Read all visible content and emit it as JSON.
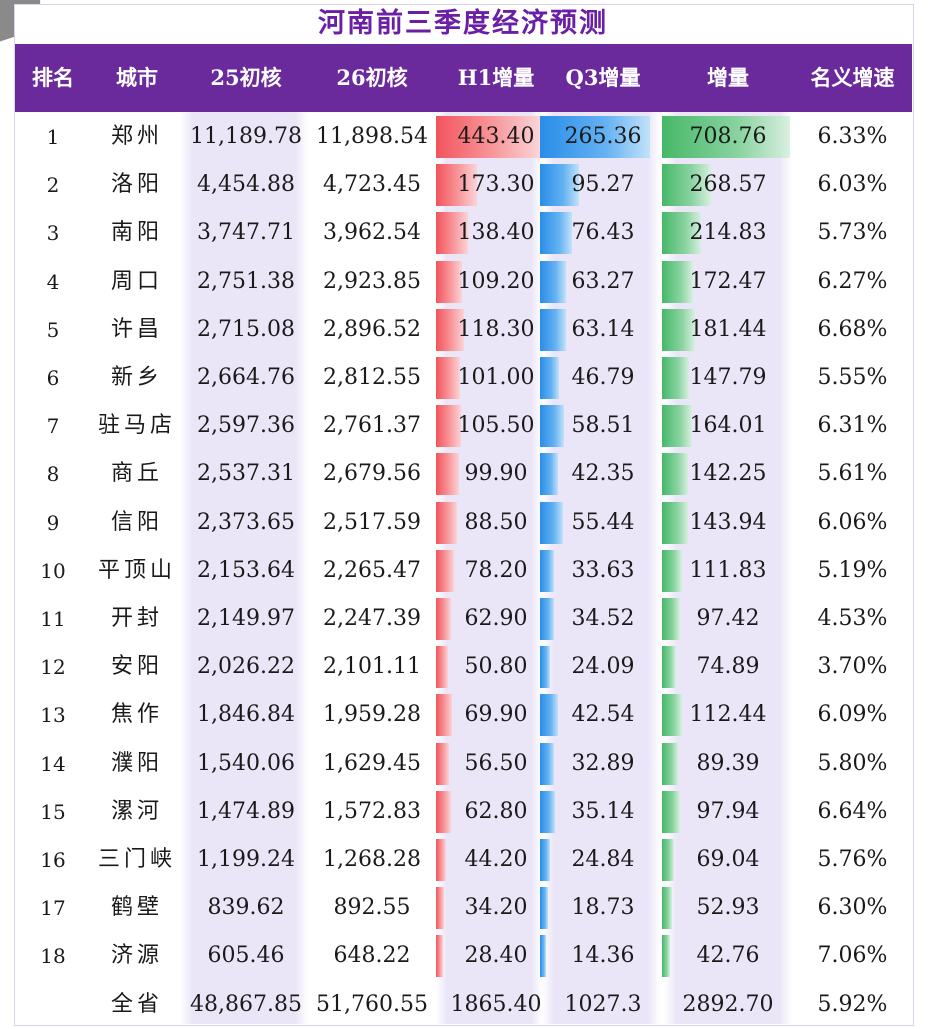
{
  "title": "河南前三季度经济预测",
  "headers": [
    "排名",
    "城市",
    "25初核",
    "26初核",
    "H1增量",
    "Q3增量",
    "增量",
    "名义增速"
  ],
  "rows": [
    [
      "1",
      "郑州",
      "11,189.78",
      "11,898.54",
      "443.40",
      "265.36",
      "708.76",
      "6.33%"
    ],
    [
      "2",
      "洛阳",
      "4,454.88",
      "4,723.45",
      "173.30",
      "95.27",
      "268.57",
      "6.03%"
    ],
    [
      "3",
      "南阳",
      "3,747.71",
      "3,962.54",
      "138.40",
      "76.43",
      "214.83",
      "5.73%"
    ],
    [
      "4",
      "周口",
      "2,751.38",
      "2,923.85",
      "109.20",
      "63.27",
      "172.47",
      "6.27%"
    ],
    [
      "5",
      "许昌",
      "2,715.08",
      "2,896.52",
      "118.30",
      "63.14",
      "181.44",
      "6.68%"
    ],
    [
      "6",
      "新乡",
      "2,664.76",
      "2,812.55",
      "101.00",
      "46.79",
      "147.79",
      "5.55%"
    ],
    [
      "7",
      "驻马店",
      "2,597.36",
      "2,761.37",
      "105.50",
      "58.51",
      "164.01",
      "6.31%"
    ],
    [
      "8",
      "商丘",
      "2,537.31",
      "2,679.56",
      "99.90",
      "42.35",
      "142.25",
      "5.61%"
    ],
    [
      "9",
      "信阳",
      "2,373.65",
      "2,517.59",
      "88.50",
      "55.44",
      "143.94",
      "6.06%"
    ],
    [
      "10",
      "平顶山",
      "2,153.64",
      "2,265.47",
      "78.20",
      "33.63",
      "111.83",
      "5.19%"
    ],
    [
      "11",
      "开封",
      "2,149.97",
      "2,247.39",
      "62.90",
      "34.52",
      "97.42",
      "4.53%"
    ],
    [
      "12",
      "安阳",
      "2,026.22",
      "2,101.11",
      "50.80",
      "24.09",
      "74.89",
      "3.70%"
    ],
    [
      "13",
      "焦作",
      "1,846.84",
      "1,959.28",
      "69.90",
      "42.54",
      "112.44",
      "6.09%"
    ],
    [
      "14",
      "濮阳",
      "1,540.06",
      "1,629.45",
      "56.50",
      "32.89",
      "89.39",
      "5.80%"
    ],
    [
      "15",
      "漯河",
      "1,474.89",
      "1,572.83",
      "62.80",
      "35.14",
      "97.94",
      "6.64%"
    ],
    [
      "16",
      "三门峡",
      "1,199.24",
      "1,268.28",
      "44.20",
      "24.84",
      "69.04",
      "5.76%"
    ],
    [
      "17",
      "鹤壁",
      "839.62",
      "892.55",
      "34.20",
      "18.73",
      "52.93",
      "6.30%"
    ],
    [
      "18",
      "济源",
      "605.46",
      "648.22",
      "28.40",
      "14.36",
      "42.76",
      "7.06%"
    ],
    [
      "",
      "全省",
      "48,867.85",
      "51,760.55",
      "1865.40",
      "1027.3",
      "2892.70",
      "5.92%"
    ]
  ],
  "colors": {
    "header_bg": "#6a2a9c",
    "title": "#6b1fa6",
    "h1_bar": "#f2545c",
    "q3_bar": "#2a8de8",
    "total_bar": "#46b868"
  }
}
